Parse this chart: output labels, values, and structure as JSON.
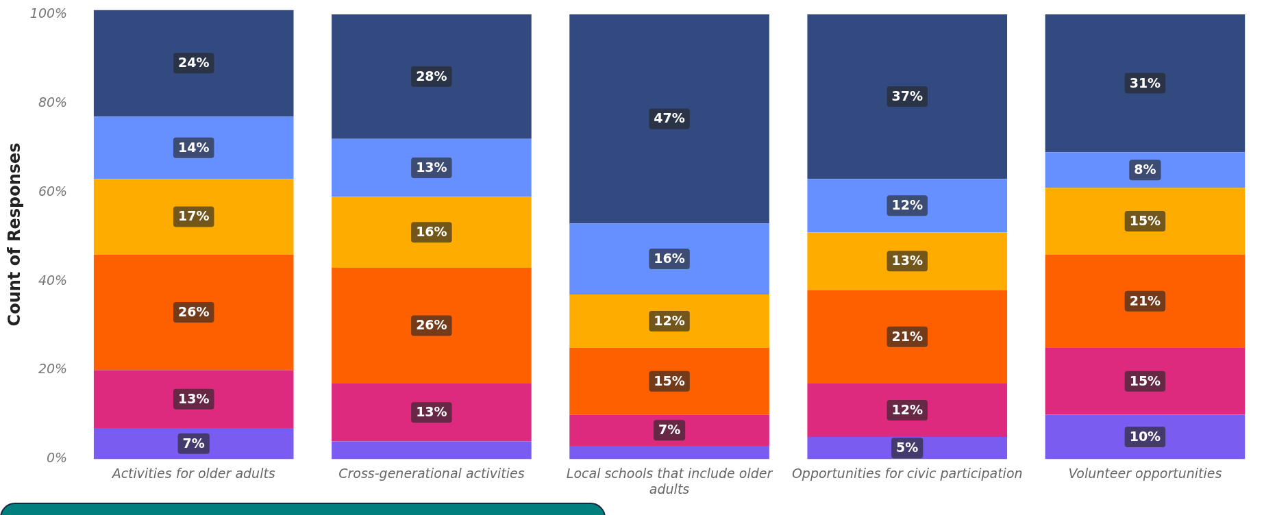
{
  "chart_data": {
    "type": "bar",
    "stacked": true,
    "ylabel": "Count of Responses",
    "categories": [
      "Activities for older adults",
      "Cross-generational activities",
      "Local schools that include older adults",
      "Opportunities for civic participation",
      "Volunteer opportunities"
    ],
    "ylim": [
      0,
      101
    ],
    "yticks": [
      {
        "value": 0,
        "label": "0%"
      },
      {
        "value": 20,
        "label": "20%"
      },
      {
        "value": 40,
        "label": "40%"
      },
      {
        "value": 60,
        "label": "60%"
      },
      {
        "value": 80,
        "label": "80%"
      },
      {
        "value": 100,
        "label": "100%"
      }
    ],
    "grid": false,
    "legend": false,
    "series": [
      {
        "color": "#7b5cf0",
        "values": [
          7,
          4,
          3,
          5,
          10
        ],
        "value_labels": [
          "7%",
          null,
          null,
          "5%",
          "10%"
        ]
      },
      {
        "color": "#dd2a7f",
        "values": [
          13,
          13,
          7,
          12,
          15
        ],
        "value_labels": [
          "13%",
          "13%",
          "7%",
          "12%",
          "15%"
        ]
      },
      {
        "color": "#fe6000",
        "values": [
          26,
          26,
          15,
          21,
          21
        ],
        "value_labels": [
          "26%",
          "26%",
          "15%",
          "21%",
          "21%"
        ]
      },
      {
        "color": "#ffac00",
        "values": [
          17,
          16,
          12,
          13,
          15
        ],
        "value_labels": [
          "17%",
          "16%",
          "12%",
          "13%",
          "15%"
        ]
      },
      {
        "color": "#6690ff",
        "values": [
          14,
          13,
          16,
          12,
          8
        ],
        "value_labels": [
          "14%",
          "13%",
          "16%",
          "12%",
          "8%"
        ]
      },
      {
        "color": "#334a80",
        "values": [
          24,
          28,
          47,
          37,
          31
        ],
        "value_labels": [
          "24%",
          "28%",
          "47%",
          "37%",
          "31%"
        ]
      }
    ]
  }
}
